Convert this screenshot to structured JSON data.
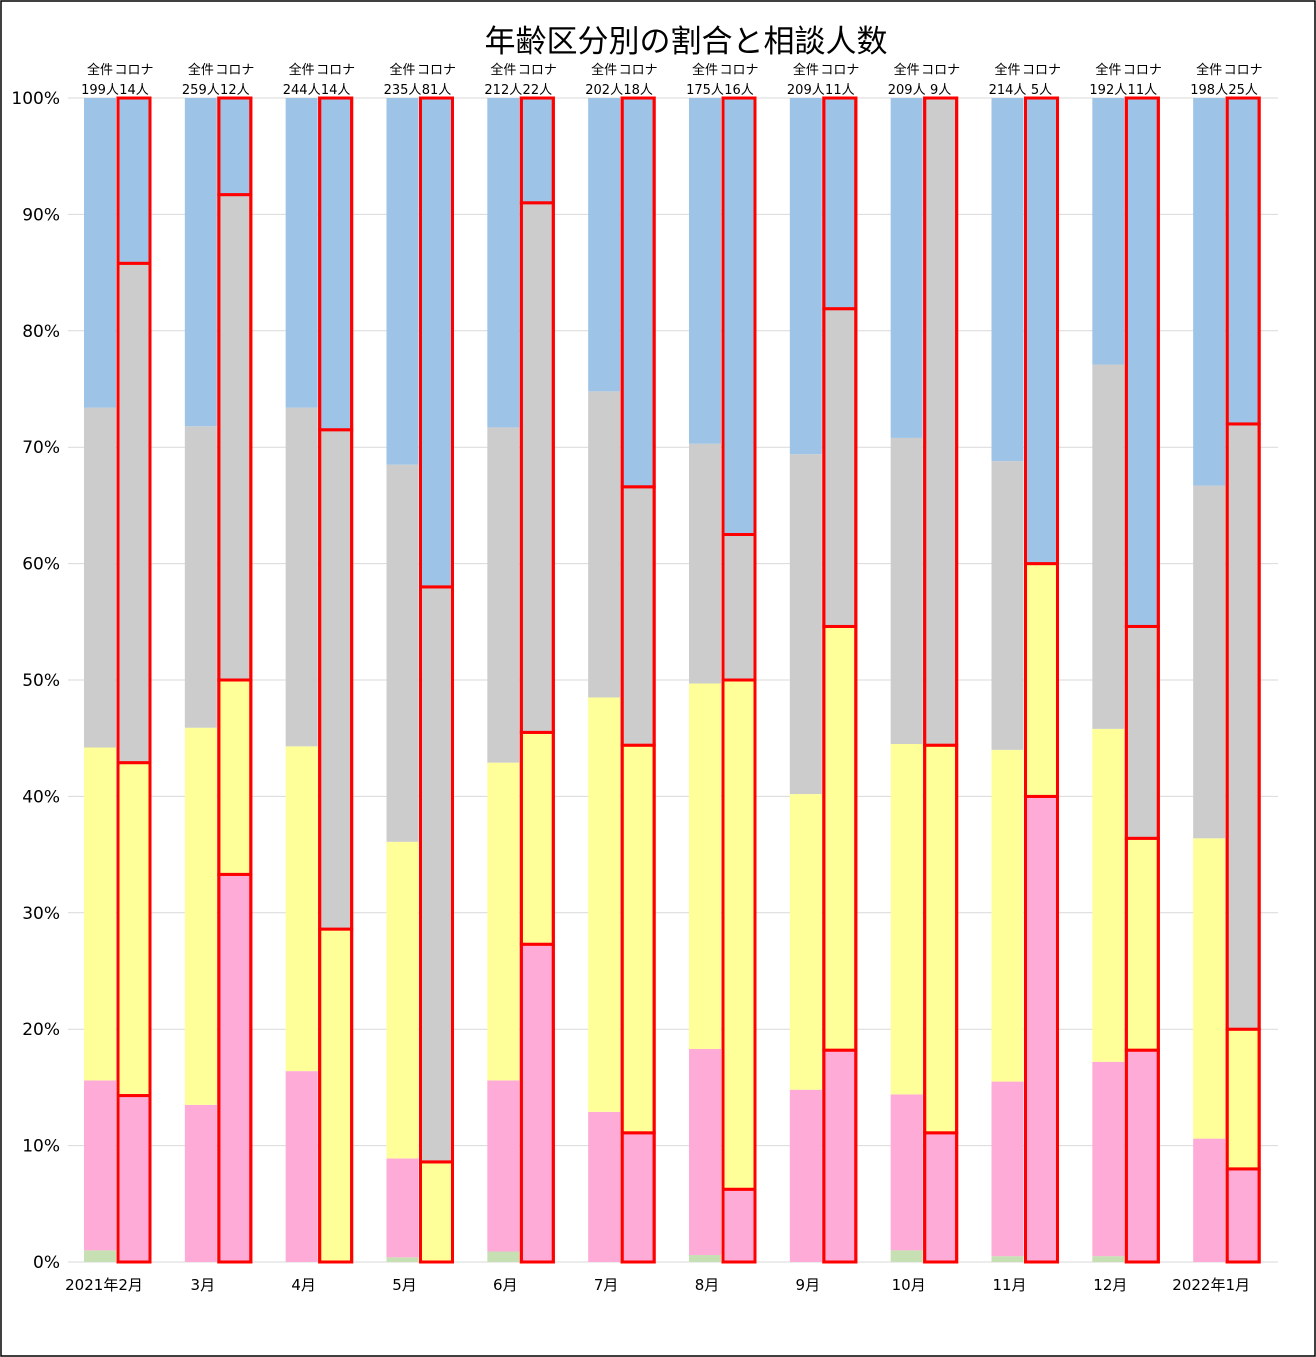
{
  "chart_data": {
    "type": "bar",
    "stacked": true,
    "normalized": true,
    "title": "年齢区分別の割合と相談人数",
    "ylim": [
      0,
      100
    ],
    "yticks": [
      "0%",
      "10%",
      "20%",
      "30%",
      "40%",
      "50%",
      "60%",
      "70%",
      "80%",
      "90%",
      "100%"
    ],
    "grid": true,
    "categories": [
      "2021年2月",
      "3月",
      "4月",
      "5月",
      "6月",
      "7月",
      "8月",
      "9月",
      "10月",
      "11月",
      "12月",
      "2022年1月"
    ],
    "header_labels": {
      "all": "全件",
      "corona": "コロナ"
    },
    "series_colors": [
      "#c6e0b4",
      "#ffabd7",
      "#ffff99",
      "#cccccc",
      "#9dc3e6"
    ],
    "highlight_color": "#ff0000",
    "groups": [
      {
        "name": "全件",
        "counts": [
          "199人",
          "259人",
          "244人",
          "235人",
          "212人",
          "202人",
          "175人",
          "209人",
          "209人",
          "214人",
          "192人",
          "198人"
        ],
        "segments": [
          [
            1.0,
            14.6,
            28.6,
            29.2,
            26.6
          ],
          [
            0.0,
            13.5,
            32.4,
            25.9,
            28.2
          ],
          [
            0.0,
            16.4,
            27.9,
            29.1,
            26.6
          ],
          [
            0.4,
            8.5,
            27.2,
            32.4,
            31.5
          ],
          [
            0.9,
            14.7,
            27.3,
            28.8,
            28.3
          ],
          [
            0.0,
            12.9,
            35.6,
            26.3,
            25.2
          ],
          [
            0.6,
            17.7,
            31.4,
            20.6,
            29.7
          ],
          [
            0.0,
            14.8,
            25.4,
            29.2,
            30.6
          ],
          [
            1.0,
            13.4,
            30.1,
            26.3,
            29.2
          ],
          [
            0.5,
            15.0,
            28.5,
            24.8,
            31.2
          ],
          [
            0.5,
            16.7,
            28.6,
            31.3,
            22.9
          ],
          [
            0.0,
            10.6,
            25.8,
            30.3,
            33.3
          ]
        ]
      },
      {
        "name": "コロナ",
        "counts": [
          "14人",
          "12人",
          "14人",
          "81人",
          "22人",
          "18人",
          "16人",
          "11人",
          "9人",
          "5人",
          "11人",
          "25人"
        ],
        "segments": [
          [
            0.0,
            14.3,
            28.6,
            42.9,
            14.2
          ],
          [
            0.0,
            33.3,
            16.7,
            41.7,
            8.3
          ],
          [
            0.0,
            0.0,
            28.6,
            42.9,
            28.5
          ],
          [
            0.0,
            0.0,
            8.6,
            49.4,
            42.0
          ],
          [
            0.0,
            27.3,
            18.2,
            45.5,
            9.0
          ],
          [
            0.0,
            11.1,
            33.3,
            22.2,
            33.4
          ],
          [
            0.0,
            6.25,
            43.75,
            12.5,
            37.5
          ],
          [
            0.0,
            18.2,
            36.4,
            27.3,
            18.1
          ],
          [
            0.0,
            11.1,
            33.3,
            55.6,
            0.0
          ],
          [
            0.0,
            40.0,
            20.0,
            0.0,
            40.0
          ],
          [
            0.0,
            18.2,
            18.2,
            18.2,
            45.4
          ],
          [
            0.0,
            8.0,
            12.0,
            52.0,
            28.0
          ]
        ]
      }
    ]
  }
}
